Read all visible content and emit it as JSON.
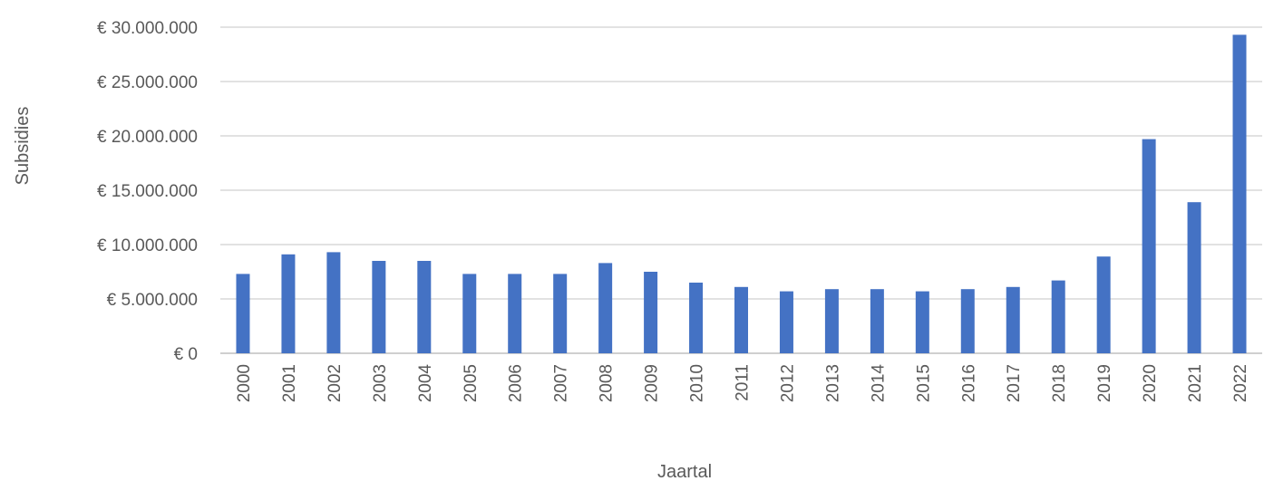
{
  "chart_data": {
    "type": "bar",
    "title": "",
    "xlabel": "Jaartal",
    "ylabel": "Subsidies",
    "ylim": [
      0,
      30000000
    ],
    "y_ticks": [
      0,
      5000000,
      10000000,
      15000000,
      20000000,
      25000000,
      30000000
    ],
    "y_tick_labels": [
      "€ 0",
      "€ 5.000.000",
      "€ 10.000.000",
      "€ 15.000.000",
      "€ 20.000.000",
      "€ 25.000.000",
      "€ 30.000.000"
    ],
    "categories": [
      "2000",
      "2001",
      "2002",
      "2003",
      "2004",
      "2005",
      "2006",
      "2007",
      "2008",
      "2009",
      "2010",
      "2011",
      "2012",
      "2013",
      "2014",
      "2015",
      "2016",
      "2017",
      "2018",
      "2019",
      "2020",
      "2021",
      "2022"
    ],
    "values": [
      7300000,
      9100000,
      9300000,
      8500000,
      8500000,
      7300000,
      7300000,
      7300000,
      8300000,
      7500000,
      6500000,
      6100000,
      5700000,
      5900000,
      5900000,
      5700000,
      5900000,
      6100000,
      6700000,
      8900000,
      19700000,
      13900000,
      29300000
    ],
    "bar_color": "#4472c4",
    "grid": true,
    "legend": "none"
  }
}
